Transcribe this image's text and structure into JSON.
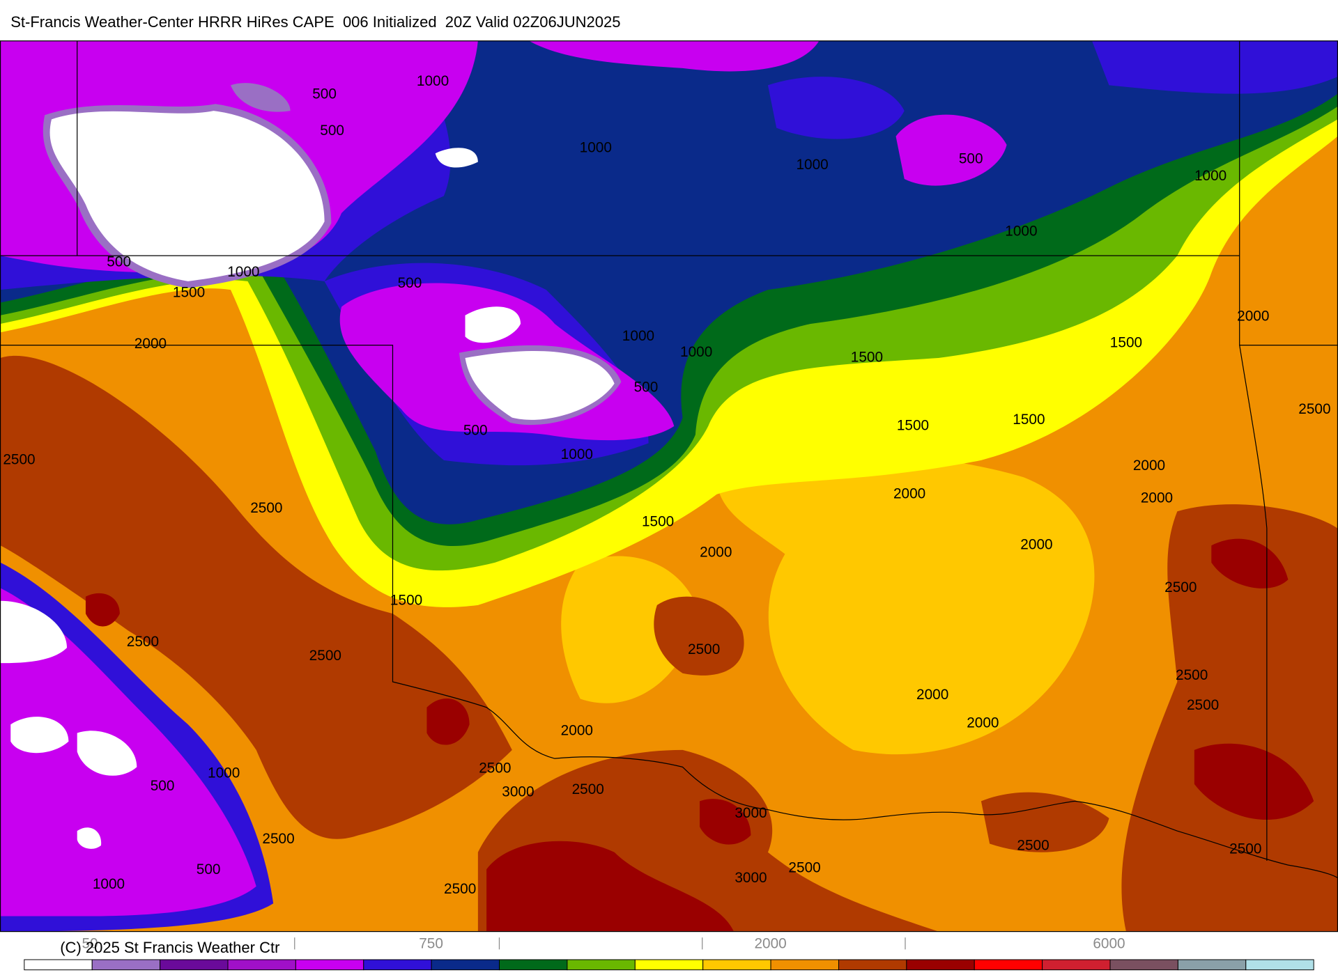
{
  "header": {
    "title": "St-Francis Weather-Center HRRR HiRes CAPE  006 Initialized  20Z Valid 02Z06JUN2025"
  },
  "contour_labels": [
    "1000",
    "500",
    "500",
    "1000",
    "1000",
    "500",
    "1000",
    "1000",
    "500",
    "1000",
    "1500",
    "500",
    "2000",
    "1000",
    "1000",
    "1500",
    "2000",
    "1500",
    "500",
    "1500",
    "1500",
    "500",
    "1000",
    "2500",
    "2500",
    "2000",
    "2000",
    "2000",
    "2500",
    "1500",
    "2000",
    "2000",
    "2500",
    "1500",
    "2500",
    "2500",
    "2500",
    "2000",
    "2500",
    "2500",
    "2000",
    "2000",
    "2500",
    "1000",
    "3000",
    "2500",
    "500",
    "3000",
    "2500",
    "2500",
    "2500",
    "500",
    "2500",
    "3000",
    "1000",
    "2500"
  ],
  "colorbar": {
    "colors": [
      "#ffffff",
      "#9a6fc4",
      "#6a0a9a",
      "#a010c8",
      "#c800f0",
      "#3010d8",
      "#0a2a8a",
      "#006a1a",
      "#6ab800",
      "#ffff00",
      "#ffc800",
      "#f09000",
      "#b03a00",
      "#9a0000",
      "#ff0000",
      "#d02030",
      "#7a5060",
      "#8aa0a8",
      "#b0e0e8"
    ],
    "labels": [
      "50",
      "750",
      "2000",
      "6000"
    ]
  },
  "footer": {
    "copyright": "(C) 2025 St Francis Weather Ctr"
  }
}
